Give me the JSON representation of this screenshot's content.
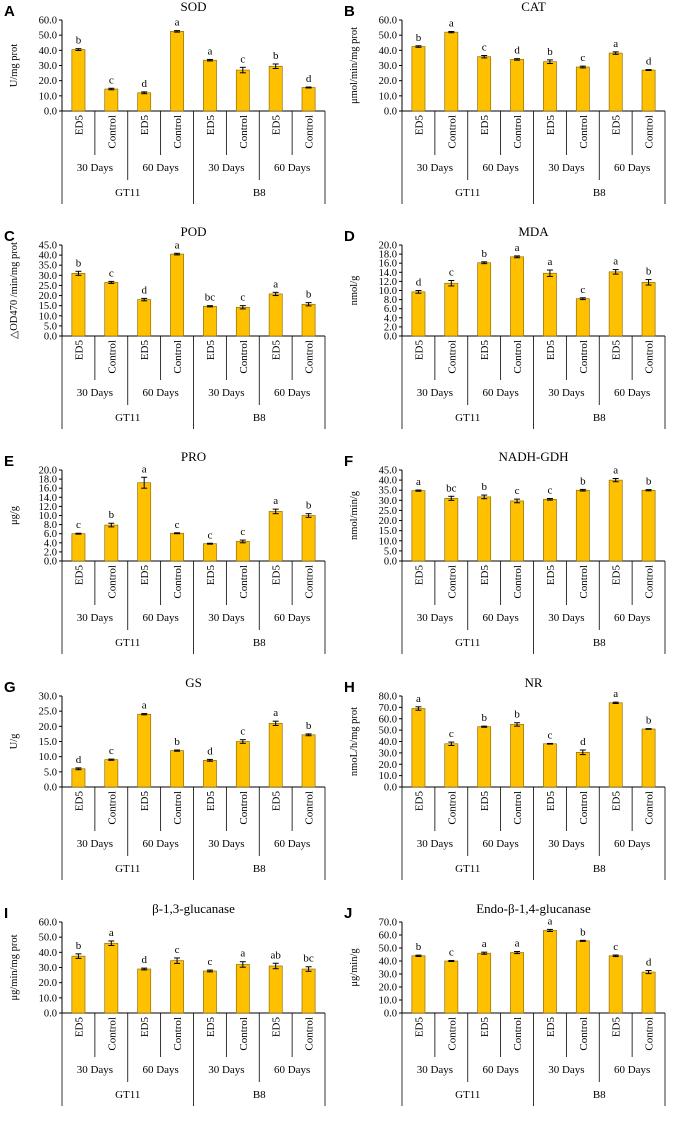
{
  "chart_data": [
    {
      "type": "bar",
      "panel_label": "A",
      "title": "SOD",
      "ylabel": "U/mg prot",
      "yticks": [
        "0.0",
        "10.0",
        "20.0",
        "30.0",
        "40.0",
        "50.0",
        "60.0"
      ],
      "ylim": [
        0,
        60
      ],
      "categories": [
        "ED5",
        "Control",
        "ED5",
        "Control",
        "ED5",
        "Control",
        "ED5",
        "Control"
      ],
      "days": [
        "30 Days",
        "60 Days",
        "30 Days",
        "60 Days"
      ],
      "groups": [
        "GT11",
        "B8"
      ],
      "values": [
        40.5,
        14.5,
        12.0,
        52.5,
        33.5,
        27.0,
        29.5,
        15.5
      ],
      "errors": [
        0.6,
        0.5,
        0.6,
        0.5,
        0.5,
        1.8,
        1.5,
        0.3
      ],
      "letters": [
        "b",
        "c",
        "d",
        "a",
        "a",
        "c",
        "b",
        "d"
      ]
    },
    {
      "type": "bar",
      "panel_label": "B",
      "title": "CAT",
      "ylabel": "μmol/min/mg prot",
      "yticks": [
        "0.0",
        "10.0",
        "20.0",
        "30.0",
        "40.0",
        "50.0",
        "60.0"
      ],
      "ylim": [
        0,
        60
      ],
      "categories": [
        "ED5",
        "Control",
        "ED5",
        "Control",
        "ED5",
        "Control",
        "ED5",
        "Control"
      ],
      "days": [
        "30 Days",
        "60 Days",
        "30 Days",
        "60 Days"
      ],
      "groups": [
        "GT11",
        "B8"
      ],
      "values": [
        42.5,
        52.0,
        35.8,
        34.0,
        32.5,
        29.0,
        38.2,
        27.0
      ],
      "errors": [
        0.5,
        0.4,
        0.8,
        0.5,
        1.2,
        0.6,
        0.8,
        0.3
      ],
      "letters": [
        "b",
        "a",
        "c",
        "d",
        "b",
        "c",
        "a",
        "d"
      ]
    },
    {
      "type": "bar",
      "panel_label": "C",
      "title": "POD",
      "ylabel": "△OD470 /min/mg prot",
      "yticks": [
        "0.0",
        "5.0",
        "10.0",
        "15.0",
        "20.0",
        "25.0",
        "30.0",
        "35.0",
        "40.0",
        "45.0"
      ],
      "ylim": [
        0,
        45
      ],
      "categories": [
        "ED5",
        "Control",
        "ED5",
        "Control",
        "ED5",
        "Control",
        "ED5",
        "Control"
      ],
      "days": [
        "30 Days",
        "60 Days",
        "30 Days",
        "60 Days"
      ],
      "groups": [
        "GT11",
        "B8"
      ],
      "values": [
        31.0,
        26.5,
        18.0,
        40.5,
        14.7,
        14.2,
        20.8,
        15.7
      ],
      "errors": [
        1.0,
        0.5,
        0.6,
        0.4,
        0.3,
        0.8,
        0.8,
        0.8
      ],
      "letters": [
        "b",
        "c",
        "d",
        "a",
        "bc",
        "c",
        "a",
        "b"
      ]
    },
    {
      "type": "bar",
      "panel_label": "D",
      "title": "MDA",
      "ylabel": "nmol/g",
      "yticks": [
        "0.0",
        "2.0",
        "4.0",
        "6.0",
        "8.0",
        "10.0",
        "12.0",
        "14.0",
        "16.0",
        "18.0",
        "20.0"
      ],
      "ylim": [
        0,
        20
      ],
      "categories": [
        "ED5",
        "Control",
        "ED5",
        "Control",
        "ED5",
        "Control",
        "ED5",
        "Control"
      ],
      "days": [
        "30 Days",
        "60 Days",
        "30 Days",
        "60 Days"
      ],
      "groups": [
        "GT11",
        "B8"
      ],
      "values": [
        9.7,
        11.6,
        16.1,
        17.4,
        13.8,
        8.2,
        14.1,
        11.8
      ],
      "errors": [
        0.3,
        0.6,
        0.2,
        0.2,
        0.7,
        0.2,
        0.5,
        0.6
      ],
      "letters": [
        "d",
        "c",
        "b",
        "a",
        "a",
        "c",
        "a",
        "b"
      ]
    },
    {
      "type": "bar",
      "panel_label": "E",
      "title": "PRO",
      "ylabel": "μg/g",
      "yticks": [
        "0.0",
        "2.0",
        "4.0",
        "6.0",
        "8.0",
        "10.0",
        "12.0",
        "14.0",
        "16.0",
        "18.0",
        "20.0"
      ],
      "ylim": [
        0,
        20
      ],
      "categories": [
        "ED5",
        "Control",
        "ED5",
        "Control",
        "ED5",
        "Control",
        "ED5",
        "Control"
      ],
      "days": [
        "30 Days",
        "60 Days",
        "30 Days",
        "60 Days"
      ],
      "groups": [
        "GT11",
        "B8"
      ],
      "values": [
        6.0,
        7.9,
        17.2,
        6.1,
        3.8,
        4.3,
        10.9,
        10.0
      ],
      "errors": [
        0.1,
        0.4,
        1.2,
        0.1,
        0.1,
        0.3,
        0.5,
        0.4
      ],
      "letters": [
        "c",
        "b",
        "a",
        "c",
        "c",
        "c",
        "a",
        "b"
      ]
    },
    {
      "type": "bar",
      "panel_label": "F",
      "title": "NADH-GDH",
      "ylabel": "nmol/min/g",
      "yticks": [
        "0.0",
        "5.0",
        "10.0",
        "15.0",
        "20.0",
        "25.0",
        "30.0",
        "35.0",
        "40.0",
        "45.0"
      ],
      "ylim": [
        0,
        45
      ],
      "categories": [
        "ED5",
        "Control",
        "ED5",
        "Control",
        "ED5",
        "Control",
        "ED5",
        "Control"
      ],
      "days": [
        "30 Days",
        "60 Days",
        "30 Days",
        "60 Days"
      ],
      "groups": [
        "GT11",
        "B8"
      ],
      "values": [
        34.8,
        31.0,
        31.7,
        29.7,
        30.5,
        35.0,
        40.0,
        35.0
      ],
      "errors": [
        0.3,
        1.0,
        0.9,
        0.9,
        0.4,
        0.4,
        0.8,
        0.3
      ],
      "letters": [
        "a",
        "bc",
        "b",
        "c",
        "c",
        "b",
        "a",
        "b"
      ]
    },
    {
      "type": "bar",
      "panel_label": "G",
      "title": "GS",
      "ylabel": "U/g",
      "yticks": [
        "0.0",
        "5.0",
        "10.0",
        "15.0",
        "20.0",
        "25.0",
        "30.0"
      ],
      "ylim": [
        0,
        30
      ],
      "categories": [
        "ED5",
        "Control",
        "ED5",
        "Control",
        "ED5",
        "Control",
        "ED5",
        "Control"
      ],
      "days": [
        "30 Days",
        "60 Days",
        "30 Days",
        "60 Days"
      ],
      "groups": [
        "GT11",
        "B8"
      ],
      "values": [
        6.0,
        9.0,
        24.0,
        12.0,
        8.8,
        15.0,
        21.0,
        17.2
      ],
      "errors": [
        0.3,
        0.2,
        0.2,
        0.2,
        0.3,
        0.6,
        0.7,
        0.3
      ],
      "letters": [
        "d",
        "c",
        "a",
        "b",
        "d",
        "c",
        "a",
        "b"
      ]
    },
    {
      "type": "bar",
      "panel_label": "H",
      "title": "NR",
      "ylabel": "nmoL/h/mg prot",
      "yticks": [
        "0.0",
        "10.0",
        "20.0",
        "30.0",
        "40.0",
        "50.0",
        "60.0",
        "70.0",
        "80.0"
      ],
      "ylim": [
        0,
        80
      ],
      "categories": [
        "ED5",
        "Control",
        "ED5",
        "Control",
        "ED5",
        "Control",
        "ED5",
        "Control"
      ],
      "days": [
        "30 Days",
        "60 Days",
        "30 Days",
        "60 Days"
      ],
      "groups": [
        "GT11",
        "B8"
      ],
      "values": [
        69.0,
        38.0,
        53.0,
        55.0,
        38.0,
        30.5,
        74.0,
        51.0
      ],
      "errors": [
        1.5,
        1.5,
        0.5,
        1.5,
        0.3,
        2.0,
        0.6,
        0.3
      ],
      "letters": [
        "a",
        "c",
        "b",
        "b",
        "c",
        "d",
        "a",
        "b"
      ]
    },
    {
      "type": "bar",
      "panel_label": "I",
      "title": "β-1,3-glucanase",
      "ylabel": "μg/min/mg prot",
      "yticks": [
        "0.0",
        "10.0",
        "20.0",
        "30.0",
        "40.0",
        "50.0",
        "60.0"
      ],
      "ylim": [
        0,
        60
      ],
      "categories": [
        "ED5",
        "Control",
        "ED5",
        "Control",
        "ED5",
        "Control",
        "ED5",
        "Control"
      ],
      "days": [
        "30 Days",
        "60 Days",
        "30 Days",
        "60 Days"
      ],
      "groups": [
        "GT11",
        "B8"
      ],
      "values": [
        37.5,
        46.0,
        29.0,
        34.5,
        27.7,
        32.0,
        31.0,
        29.0
      ],
      "errors": [
        1.5,
        1.5,
        0.6,
        1.8,
        0.6,
        1.8,
        1.8,
        1.5
      ],
      "letters": [
        "b",
        "a",
        "d",
        "c",
        "c",
        "a",
        "ab",
        "bc"
      ]
    },
    {
      "type": "bar",
      "panel_label": "J",
      "title": "Endo-β-1,4-glucanase",
      "ylabel": "μg/min/g",
      "yticks": [
        "0.0",
        "10.0",
        "20.0",
        "30.0",
        "40.0",
        "50.0",
        "60.0",
        "70.0"
      ],
      "ylim": [
        0,
        70
      ],
      "categories": [
        "ED5",
        "Control",
        "ED5",
        "Control",
        "ED5",
        "Control",
        "ED5",
        "Control"
      ],
      "days": [
        "30 Days",
        "60 Days",
        "30 Days",
        "60 Days"
      ],
      "groups": [
        "GT11",
        "B8"
      ],
      "values": [
        44.0,
        40.0,
        46.0,
        46.5,
        63.5,
        55.5,
        44.0,
        31.5
      ],
      "errors": [
        0.5,
        0.4,
        0.8,
        0.8,
        0.8,
        0.4,
        0.6,
        1.2
      ],
      "letters": [
        "b",
        "c",
        "a",
        "a",
        "a",
        "b",
        "c",
        "d"
      ]
    }
  ],
  "colors": {
    "bar_fill": "#FFC000",
    "bar_stroke": "#7F6000",
    "axis": "#000000",
    "text": "#000000"
  }
}
